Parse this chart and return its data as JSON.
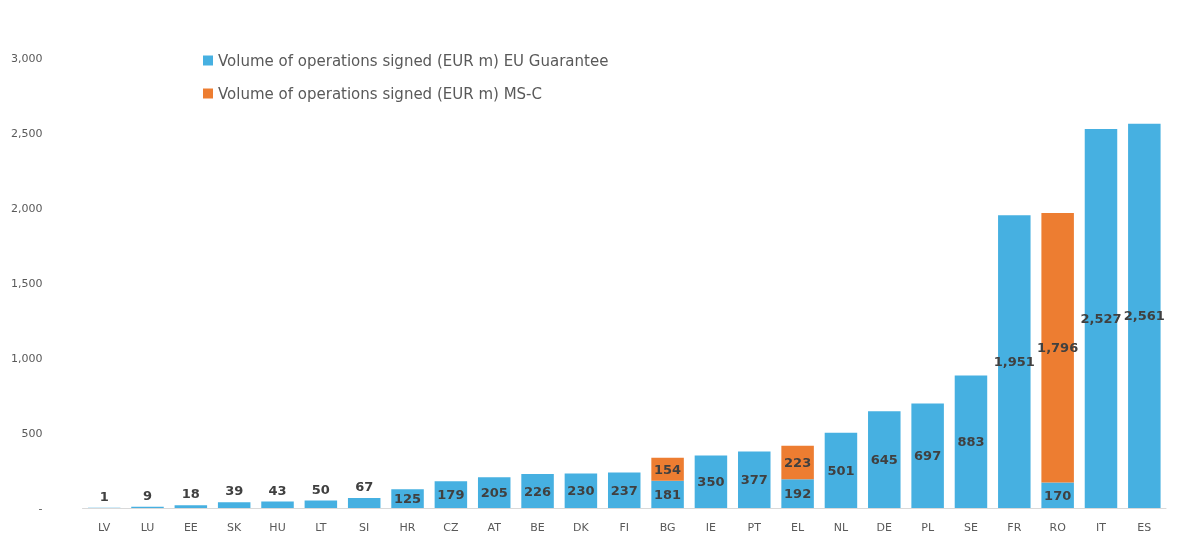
{
  "chart_data": {
    "type": "bar",
    "stacked": true,
    "categories": [
      "LV",
      "LU",
      "EE",
      "SK",
      "HU",
      "LT",
      "SI",
      "HR",
      "CZ",
      "AT",
      "BE",
      "DK",
      "FI",
      "BG",
      "IE",
      "PT",
      "EL",
      "NL",
      "DE",
      "PL",
      "SE",
      "FR",
      "RO",
      "IT",
      "ES"
    ],
    "series": [
      {
        "name": "Volume of operations signed (EUR m) EU Guarantee",
        "color": "#46b0e1",
        "values": [
          1,
          9,
          18,
          39,
          43,
          50,
          67,
          125,
          179,
          205,
          226,
          230,
          237,
          181,
          350,
          377,
          192,
          501,
          645,
          697,
          883,
          1951,
          170,
          2527,
          2561
        ],
        "value_labels": [
          "1",
          "9",
          "18",
          "39",
          "43",
          "50",
          "67",
          "125",
          "179",
          "205",
          "226",
          "230",
          "237",
          "181",
          "350",
          "377",
          "192",
          "501",
          "645",
          "697",
          "883",
          "1,951",
          "170",
          "2,527",
          "2,561"
        ]
      },
      {
        "name": "Volume of operations signed (EUR m) MS-C",
        "color": "#ed7d31",
        "values": [
          null,
          null,
          null,
          null,
          null,
          null,
          null,
          null,
          null,
          null,
          null,
          null,
          null,
          154,
          null,
          null,
          223,
          null,
          null,
          null,
          null,
          null,
          1796,
          null,
          null
        ],
        "value_labels": [
          null,
          null,
          null,
          null,
          null,
          null,
          null,
          null,
          null,
          null,
          null,
          null,
          null,
          "154",
          null,
          null,
          "223",
          null,
          null,
          null,
          null,
          null,
          "1,796",
          null,
          null
        ]
      }
    ],
    "ylim": [
      0,
      3000
    ],
    "yticks": [
      {
        "value": 0,
        "label": "-"
      },
      {
        "value": 500,
        "label": "500"
      },
      {
        "value": 1000,
        "label": "1,000"
      },
      {
        "value": 1500,
        "label": "1,500"
      },
      {
        "value": 2000,
        "label": "2,000"
      },
      {
        "value": 2500,
        "label": "2,500"
      },
      {
        "value": 3000,
        "label": "3,000"
      }
    ],
    "grid": false,
    "legend": "top left"
  }
}
